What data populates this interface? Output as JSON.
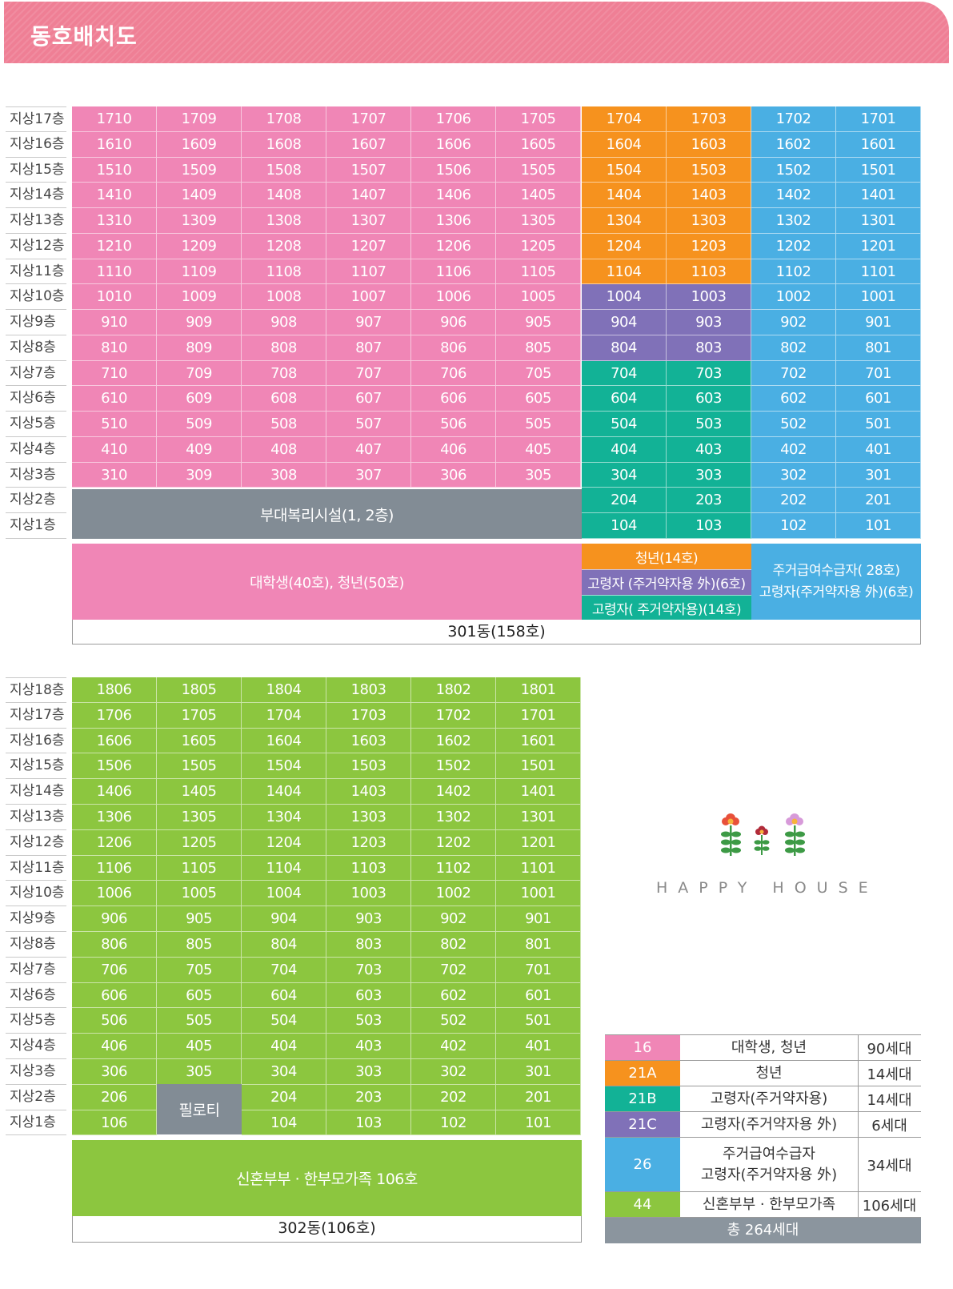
{
  "header": {
    "title": "동호배치도"
  },
  "colors": {
    "pink": "#f086b6",
    "orange": "#f6921e",
    "purple": "#8071b8",
    "teal": "#12b296",
    "blue": "#4aafe3",
    "green": "#8cc63f",
    "gray": "#828c95"
  },
  "building301": {
    "floor_labels": [
      "지상17층",
      "지상16층",
      "지상15층",
      "지상14층",
      "지상13층",
      "지상12층",
      "지상11층",
      "지상10층",
      "지상9층",
      "지상8층",
      "지상7층",
      "지상6층",
      "지상5층",
      "지상4층",
      "지상3층",
      "지상2층",
      "지상1층"
    ],
    "rows": [
      [
        "1710",
        "1709",
        "1708",
        "1707",
        "1706",
        "1705",
        "1704",
        "1703",
        "1702",
        "1701"
      ],
      [
        "1610",
        "1609",
        "1608",
        "1607",
        "1606",
        "1605",
        "1604",
        "1603",
        "1602",
        "1601"
      ],
      [
        "1510",
        "1509",
        "1508",
        "1507",
        "1506",
        "1505",
        "1504",
        "1503",
        "1502",
        "1501"
      ],
      [
        "1410",
        "1409",
        "1408",
        "1407",
        "1406",
        "1405",
        "1404",
        "1403",
        "1402",
        "1401"
      ],
      [
        "1310",
        "1309",
        "1308",
        "1307",
        "1306",
        "1305",
        "1304",
        "1303",
        "1302",
        "1301"
      ],
      [
        "1210",
        "1209",
        "1208",
        "1207",
        "1206",
        "1205",
        "1204",
        "1203",
        "1202",
        "1201"
      ],
      [
        "1110",
        "1109",
        "1108",
        "1107",
        "1106",
        "1105",
        "1104",
        "1103",
        "1102",
        "1101"
      ],
      [
        "1010",
        "1009",
        "1008",
        "1007",
        "1006",
        "1005",
        "1004",
        "1003",
        "1002",
        "1001"
      ],
      [
        "910",
        "909",
        "908",
        "907",
        "906",
        "905",
        "904",
        "903",
        "902",
        "901"
      ],
      [
        "810",
        "809",
        "808",
        "807",
        "806",
        "805",
        "804",
        "803",
        "802",
        "801"
      ],
      [
        "710",
        "709",
        "708",
        "707",
        "706",
        "705",
        "704",
        "703",
        "702",
        "701"
      ],
      [
        "610",
        "609",
        "608",
        "607",
        "606",
        "605",
        "604",
        "603",
        "602",
        "601"
      ],
      [
        "510",
        "509",
        "508",
        "507",
        "506",
        "505",
        "504",
        "503",
        "502",
        "501"
      ],
      [
        "410",
        "409",
        "408",
        "407",
        "406",
        "405",
        "404",
        "403",
        "402",
        "401"
      ],
      [
        "310",
        "309",
        "308",
        "307",
        "306",
        "305",
        "304",
        "303",
        "302",
        "301"
      ],
      [
        "",
        "",
        "",
        "",
        "",
        "",
        "204",
        "203",
        "202",
        "201"
      ],
      [
        "",
        "",
        "",
        "",
        "",
        "",
        "104",
        "103",
        "102",
        "101"
      ]
    ],
    "welfare_facility": "부대복리시설(1, 2층)",
    "legend_pink": "대학생(40호), 청년(50호)",
    "legend_orange": "청년(14호)",
    "legend_purple": "고령자 (주거약자용 外)(6호)",
    "legend_teal": "고령자( 주거약자용)(14호)",
    "legend_blue_1": "주거급여수급자( 28호)",
    "legend_blue_2": "고령자(주거약자용  外)(6호)",
    "label": "301동(158호)"
  },
  "building302": {
    "floor_labels": [
      "지상18층",
      "지상17층",
      "지상16층",
      "지상15층",
      "지상14층",
      "지상13층",
      "지상12층",
      "지상11층",
      "지상10층",
      "지상9층",
      "지상8층",
      "지상7층",
      "지상6층",
      "지상5층",
      "지상4층",
      "지상3층",
      "지상2층",
      "지상1층"
    ],
    "rows": [
      [
        "1806",
        "1805",
        "1804",
        "1803",
        "1802",
        "1801"
      ],
      [
        "1706",
        "1705",
        "1704",
        "1703",
        "1702",
        "1701"
      ],
      [
        "1606",
        "1605",
        "1604",
        "1603",
        "1602",
        "1601"
      ],
      [
        "1506",
        "1505",
        "1504",
        "1503",
        "1502",
        "1501"
      ],
      [
        "1406",
        "1405",
        "1404",
        "1403",
        "1402",
        "1401"
      ],
      [
        "1306",
        "1305",
        "1304",
        "1303",
        "1302",
        "1301"
      ],
      [
        "1206",
        "1205",
        "1204",
        "1203",
        "1202",
        "1201"
      ],
      [
        "1106",
        "1105",
        "1104",
        "1103",
        "1102",
        "1101"
      ],
      [
        "1006",
        "1005",
        "1004",
        "1003",
        "1002",
        "1001"
      ],
      [
        "906",
        "905",
        "904",
        "903",
        "902",
        "901"
      ],
      [
        "806",
        "805",
        "804",
        "803",
        "802",
        "801"
      ],
      [
        "706",
        "705",
        "704",
        "703",
        "702",
        "701"
      ],
      [
        "606",
        "605",
        "604",
        "603",
        "602",
        "601"
      ],
      [
        "506",
        "505",
        "504",
        "503",
        "502",
        "501"
      ],
      [
        "406",
        "405",
        "404",
        "403",
        "402",
        "401"
      ],
      [
        "306",
        "305",
        "304",
        "303",
        "302",
        "301"
      ],
      [
        "206",
        "",
        "204",
        "203",
        "202",
        "201"
      ],
      [
        "106",
        "",
        "104",
        "103",
        "102",
        "101"
      ]
    ],
    "piloti": "필로티",
    "legend_green": "신혼부부 · 한부모가족 106호",
    "label": "302동(106호)"
  },
  "brand": {
    "text": "HAPPY HOUSE"
  },
  "legend": {
    "rows": [
      {
        "code": "16",
        "desc": "대학생, 청년",
        "count": "90세대",
        "color": "#f086b6"
      },
      {
        "code": "21A",
        "desc": "청년",
        "count": "14세대",
        "color": "#f6921e"
      },
      {
        "code": "21B",
        "desc": "고령자(주거약자용)",
        "count": "14세대",
        "color": "#12b296"
      },
      {
        "code": "21C",
        "desc": "고령자(주거약자용 外)",
        "count": "6세대",
        "color": "#8071b8"
      },
      {
        "code": "26",
        "desc": "주거급여수급자",
        "desc2": "고령자(주거약자용 外)",
        "count": "34세대",
        "color": "#4aafe3"
      },
      {
        "code": "44",
        "desc": "신혼부부 · 한부모가족",
        "count": "106세대",
        "color": "#8cc63f"
      }
    ],
    "total": "총 264세대"
  }
}
